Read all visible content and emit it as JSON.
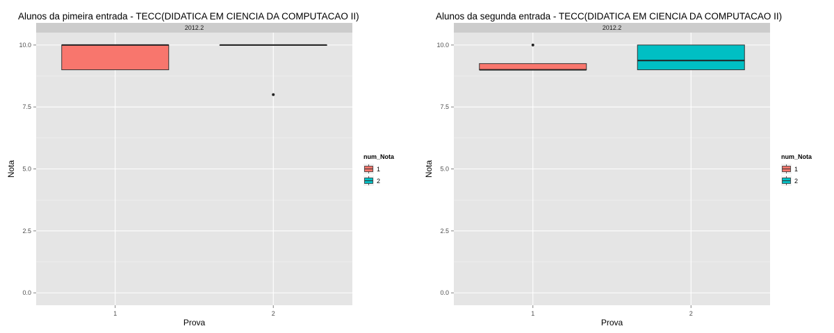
{
  "chart_data": [
    {
      "type": "box",
      "title": "Alunos da pimeira entrada -  TECC(DIDATICA EM CIENCIA DA COMPUTACAO II)",
      "facet": "2012.2",
      "xlabel": "Prova",
      "ylabel": "Nota",
      "categories": [
        "1",
        "2"
      ],
      "ylim": [
        0,
        10
      ],
      "yticks": [
        "0.0",
        "2.5",
        "5.0",
        "7.5",
        "10.0"
      ],
      "ytick_values": [
        0,
        2.5,
        5,
        7.5,
        10
      ],
      "legend": {
        "title": "num_Nota",
        "entries": [
          "1",
          "2"
        ],
        "placement": "right"
      },
      "boxes": [
        {
          "category": "1",
          "group": "1",
          "q1": 9,
          "median": 10,
          "q3": 10,
          "whisker_low": 9,
          "whisker_high": 10,
          "outliers": []
        },
        {
          "category": "2",
          "group": "2",
          "q1": 10,
          "median": 10,
          "q3": 10,
          "whisker_low": 10,
          "whisker_high": 10,
          "outliers": [
            8
          ]
        }
      ],
      "grid": true
    },
    {
      "type": "box",
      "title": "Alunos da segunda entrada -  TECC(DIDATICA EM CIENCIA DA COMPUTACAO II)",
      "facet": "2012.2",
      "xlabel": "Prova",
      "ylabel": "Nota",
      "categories": [
        "1",
        "2"
      ],
      "ylim": [
        0,
        10
      ],
      "yticks": [
        "0.0",
        "2.5",
        "5.0",
        "7.5",
        "10.0"
      ],
      "ytick_values": [
        0,
        2.5,
        5,
        7.5,
        10
      ],
      "legend": {
        "title": "num_Nota",
        "entries": [
          "1",
          "2"
        ],
        "placement": "right"
      },
      "boxes": [
        {
          "category": "1",
          "group": "1",
          "q1": 9,
          "median": 9,
          "q3": 9.25,
          "whisker_low": 9,
          "whisker_high": 9.25,
          "outliers": [
            10
          ]
        },
        {
          "category": "2",
          "group": "2",
          "q1": 9,
          "median": 9.375,
          "q3": 10,
          "whisker_low": 9,
          "whisker_high": 10,
          "outliers": []
        }
      ],
      "grid": true
    }
  ],
  "colors": {
    "group_1": "#F8766D",
    "group_2": "#00BFC4",
    "panel_bg": "#E5E5E5",
    "strip_bg": "#CCCCCC",
    "grid": "#FFFFFF"
  }
}
